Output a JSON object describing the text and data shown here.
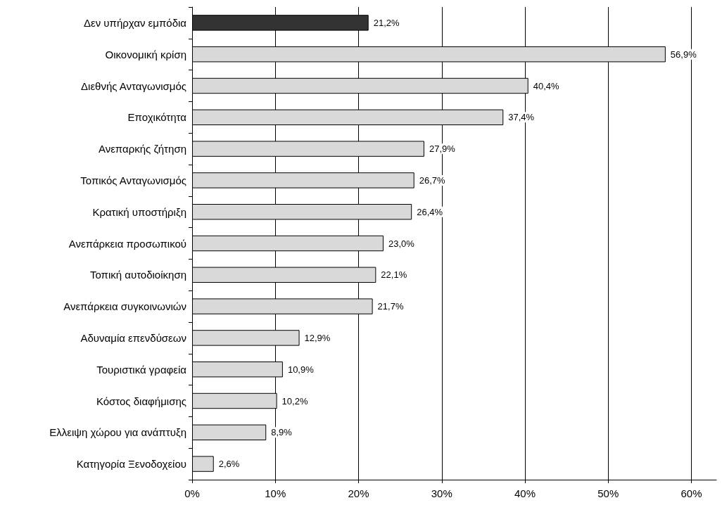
{
  "chart_data": {
    "type": "bar",
    "orientation": "horizontal",
    "categories": [
      "Δεν υπήρχαν εμπόδια",
      "Οικονομική κρίση",
      "Διεθνής Ανταγωνισμός",
      "Εποχικότητα",
      "Ανεπαρκής ζήτηση",
      "Τοπικός Ανταγωνισμός",
      "Κρατική υποστήριξη",
      "Ανεπάρκεια προσωπικού",
      "Τοπική αυτοδιοίκηση",
      "Ανεπάρκεια συγκοινωνιών",
      "Αδυναμία επενδύσεων",
      "Τουριστικά γραφεία",
      "Κόστος διαφήμισης",
      "Ελλειψη χώρου για ανάπτυξη",
      "Κατηγορία Ξενοδοχείου"
    ],
    "values": [
      21.2,
      56.9,
      40.4,
      37.4,
      27.9,
      26.7,
      26.4,
      23.0,
      22.1,
      21.7,
      12.9,
      10.9,
      10.2,
      8.9,
      2.6
    ],
    "value_labels": [
      "21,2%",
      "56,9%",
      "40,4%",
      "37,4%",
      "27,9%",
      "26,7%",
      "26,4%",
      "23,0%",
      "22,1%",
      "21,7%",
      "12,9%",
      "10,9%",
      "10,2%",
      "8,9%",
      "2,6%"
    ],
    "colors": [
      "#333333",
      "#d9d9d9",
      "#d9d9d9",
      "#d9d9d9",
      "#d9d9d9",
      "#d9d9d9",
      "#d9d9d9",
      "#d9d9d9",
      "#d9d9d9",
      "#d9d9d9",
      "#d9d9d9",
      "#d9d9d9",
      "#d9d9d9",
      "#d9d9d9",
      "#d9d9d9"
    ],
    "xlim": [
      0,
      63
    ],
    "xticks": [
      {
        "value": 0,
        "label": "0%"
      },
      {
        "value": 10,
        "label": "10%"
      },
      {
        "value": 20,
        "label": "20%"
      },
      {
        "value": 30,
        "label": "30%"
      },
      {
        "value": 40,
        "label": "40%"
      },
      {
        "value": 50,
        "label": "50%"
      },
      {
        "value": 60,
        "label": "60%"
      }
    ],
    "grid": "x"
  }
}
